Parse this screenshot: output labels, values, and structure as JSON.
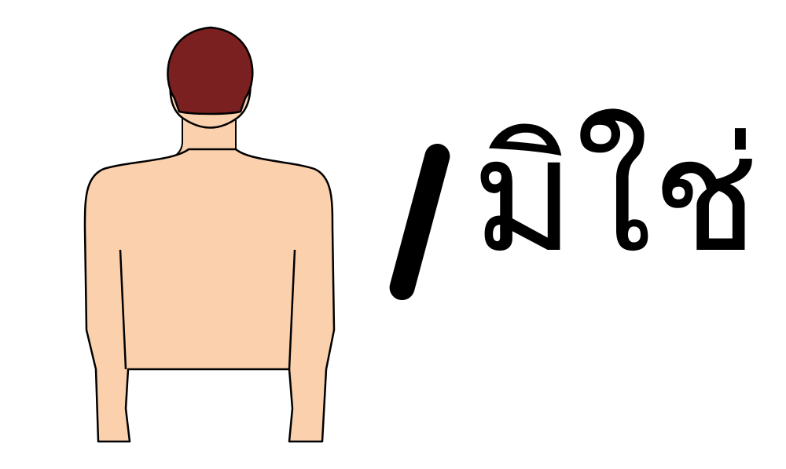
{
  "word": "มิใช่",
  "colors": {
    "skin": "#FBD1AD",
    "hair": "#7A2020",
    "outline": "#000000",
    "background": "#FFFFFF"
  },
  "icons": [
    "person-back-icon",
    "slash-icon"
  ]
}
